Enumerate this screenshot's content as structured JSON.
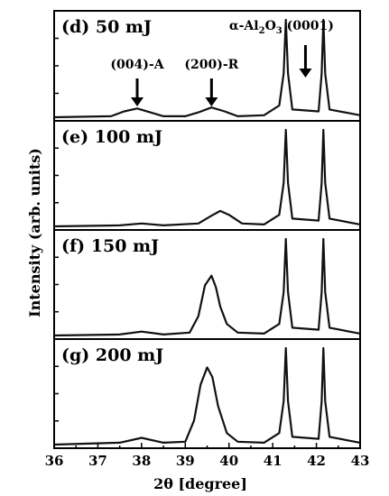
{
  "chart_data": {
    "type": "line",
    "xlabel": "2θ [degree]",
    "ylabel": "Intensity (arb. units)",
    "xlim": [
      36,
      43
    ],
    "x_ticks": [
      "36",
      "37",
      "38",
      "39",
      "40",
      "41",
      "42",
      "43"
    ],
    "ylim": [
      0,
      1
    ],
    "annotations": [
      {
        "label": "(004)-A",
        "x": 37.9
      },
      {
        "label": "(200)-R",
        "x": 39.6
      },
      {
        "label_parts": [
          "α-Al",
          "2",
          "O",
          "3",
          " (0001)"
        ],
        "x": 41.75
      }
    ],
    "panels": [
      {
        "label": "(d) 50 mJ",
        "x": [
          36.0,
          37.3,
          37.6,
          37.9,
          38.2,
          38.5,
          39.0,
          39.3,
          39.6,
          39.9,
          40.2,
          40.8,
          41.15,
          41.25,
          41.3,
          41.35,
          41.45,
          42.05,
          42.12,
          42.16,
          42.2,
          42.3,
          43.0
        ],
        "values": [
          0.0,
          0.01,
          0.06,
          0.09,
          0.05,
          0.01,
          0.01,
          0.05,
          0.1,
          0.06,
          0.01,
          0.02,
          0.12,
          0.45,
          1.0,
          0.45,
          0.08,
          0.06,
          0.45,
          1.0,
          0.45,
          0.08,
          0.02
        ]
      },
      {
        "label": "(e) 100 mJ",
        "x": [
          36.0,
          37.5,
          38.0,
          38.5,
          39.3,
          39.6,
          39.8,
          40.0,
          40.3,
          40.8,
          41.15,
          41.25,
          41.3,
          41.35,
          41.45,
          42.05,
          42.12,
          42.16,
          42.2,
          42.3,
          43.0
        ],
        "values": [
          0.0,
          0.01,
          0.03,
          0.01,
          0.03,
          0.11,
          0.16,
          0.12,
          0.03,
          0.02,
          0.12,
          0.45,
          1.0,
          0.45,
          0.08,
          0.06,
          0.45,
          1.0,
          0.45,
          0.08,
          0.02
        ]
      },
      {
        "label": "(f) 150 mJ",
        "x": [
          36.0,
          37.5,
          38.0,
          38.5,
          39.1,
          39.3,
          39.45,
          39.6,
          39.7,
          39.8,
          39.95,
          40.2,
          40.8,
          41.15,
          41.25,
          41.3,
          41.35,
          41.45,
          42.05,
          42.12,
          42.16,
          42.2,
          42.3,
          43.0
        ],
        "values": [
          0.0,
          0.01,
          0.04,
          0.01,
          0.03,
          0.2,
          0.52,
          0.62,
          0.5,
          0.3,
          0.12,
          0.03,
          0.02,
          0.12,
          0.45,
          1.0,
          0.45,
          0.08,
          0.06,
          0.45,
          1.0,
          0.45,
          0.08,
          0.02
        ]
      },
      {
        "label": "(g) 200 mJ",
        "x": [
          36.0,
          37.5,
          38.0,
          38.5,
          39.0,
          39.2,
          39.35,
          39.5,
          39.62,
          39.75,
          39.95,
          40.2,
          40.8,
          41.15,
          41.25,
          41.3,
          41.35,
          41.45,
          42.05,
          42.12,
          42.16,
          42.2,
          42.3,
          43.0
        ],
        "values": [
          0.0,
          0.02,
          0.07,
          0.02,
          0.03,
          0.25,
          0.62,
          0.8,
          0.7,
          0.4,
          0.12,
          0.03,
          0.02,
          0.12,
          0.45,
          1.0,
          0.45,
          0.08,
          0.06,
          0.45,
          1.0,
          0.45,
          0.08,
          0.02
        ]
      }
    ]
  }
}
